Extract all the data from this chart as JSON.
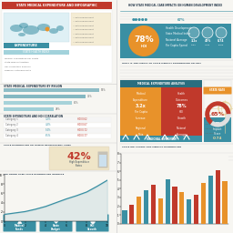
{
  "bg_color": "#f7f6f2",
  "color_teal": "#3a8fa3",
  "color_teal_dark": "#2a6e7f",
  "color_orange": "#e8922a",
  "color_red": "#c0392b",
  "color_light_teal": "#7bbfcc",
  "color_beige": "#e8d5a0",
  "color_beige2": "#f0e4c0",
  "color_white": "#ffffff",
  "color_dark": "#2c3e50",
  "color_text": "#666666",
  "color_ltgray": "#e0e0e0",
  "title_left_bg": "#c0392b",
  "title_left": "STATE MEDICAL EXPENDITURE AND INFOGRAPHIC",
  "title_right": "HOW STATE MEDICAL CARE IMPACTS ON HUMAN DEVELOPMENT INDEX",
  "bar_values": [
    1.5,
    2.2,
    3.1,
    3.8,
    4.5,
    2.9,
    5.1,
    4.2,
    3.6,
    2.8,
    3.3,
    4.7,
    5.5,
    6.1,
    4.9
  ],
  "bar_colors": [
    "#3a8fa3",
    "#c0392b",
    "#e8922a",
    "#3a8fa3",
    "#c0392b",
    "#e8922a",
    "#3a8fa3",
    "#c0392b",
    "#e8922a",
    "#3a8fa3",
    "#c0392b",
    "#e8922a",
    "#3a8fa3",
    "#c0392b",
    "#e8922a"
  ],
  "line_x": [
    0,
    1,
    2,
    3,
    4,
    5,
    6,
    7,
    8,
    9,
    10
  ],
  "line_y": [
    1.5,
    1.8,
    2.1,
    2.6,
    3.2,
    4.0,
    4.8,
    5.5,
    6.3,
    7.5,
    8.8
  ]
}
